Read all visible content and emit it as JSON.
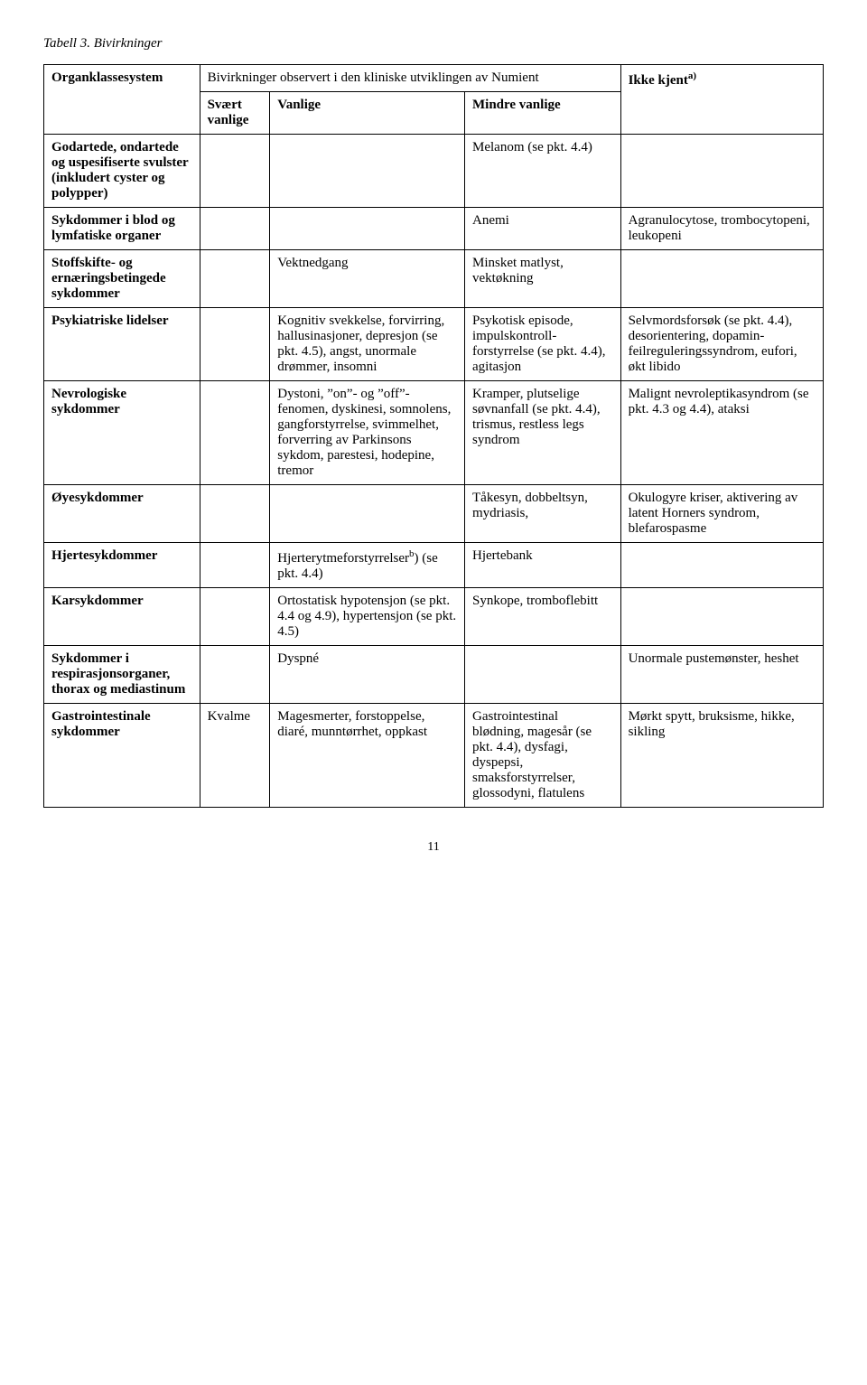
{
  "caption": "Tabell 3. Bivirkninger",
  "header": {
    "spanner": "Bivirkninger observert i den kliniske utviklingen av Numient",
    "organ": "Organklassesystem",
    "svart": "Svært vanlige",
    "vanlige": "Vanlige",
    "mindre": "Mindre vanlige",
    "ikke_pre": "Ikke kjent",
    "ikke_sup": "a)"
  },
  "rows": [
    {
      "organ": "Godartede, ondartede og uspesifiserte svulster (inkludert cyster og polypper)",
      "svart": "",
      "vanlige": "",
      "mindre": "Melanom (se pkt. 4.4)",
      "ikke": ""
    },
    {
      "organ": "Sykdommer i blod og lymfatiske organer",
      "svart": "",
      "vanlige": "",
      "mindre": "Anemi",
      "ikke": "Agranulocytose, trombocytopeni, leukopeni"
    },
    {
      "organ": "Stoffskifte- og ernæringsbetingede sykdommer",
      "svart": "",
      "vanlige": "Vektnedgang",
      "mindre": "Minsket matlyst, vektøkning",
      "ikke": ""
    },
    {
      "organ": "Psykiatriske lidelser",
      "svart": "",
      "vanlige": "Kognitiv svekkelse, forvirring, hallusinasjoner, depresjon (se pkt. 4.5), angst, unormale drømmer, insomni",
      "mindre": "Psykotisk episode, impulskontroll-forstyrrelse (se pkt. 4.4), agitasjon",
      "ikke": "Selvmordsforsøk (se pkt. 4.4), desorientering, dopamin-feilreguleringssyndrom, eufori, økt libido"
    },
    {
      "organ": "Nevrologiske sykdommer",
      "svart": "",
      "vanlige": "Dystoni, ”on”- og ”off”-fenomen, dyskinesi, somnolens, gangforstyrrelse, svimmelhet, forverring av Parkinsons sykdom, parestesi, hodepine, tremor",
      "mindre": "Kramper, plutselige søvnanfall (se pkt. 4.4), trismus, restless legs syndrom",
      "ikke": "Malignt nevroleptikasyndrom (se pkt. 4.3 og 4.4), ataksi"
    },
    {
      "organ": "Øyesykdommer",
      "svart": "",
      "vanlige": "",
      "mindre": "Tåkesyn, dobbeltsyn, mydriasis,",
      "ikke": "Okulogyre kriser, aktivering av latent Horners syndrom, blefarospasme"
    },
    {
      "organ": "Hjertesykdommer",
      "svart": "",
      "vanlige_pre": "Hjerterytmeforstyrrelser",
      "vanlige_sup": "b",
      "vanlige_post": ") (se pkt. 4.4)",
      "mindre": "Hjertebank",
      "ikke": ""
    },
    {
      "organ": "Karsykdommer",
      "svart": "",
      "vanlige": "Ortostatisk hypotensjon (se pkt. 4.4 og 4.9), hypertensjon (se pkt. 4.5)",
      "mindre": "Synkope, tromboflebitt",
      "ikke": ""
    },
    {
      "organ": "Sykdommer i respirasjonsorganer, thorax og mediastinum",
      "svart": "",
      "vanlige": "Dyspné",
      "mindre": "",
      "ikke": "Unormale pustemønster, heshet"
    },
    {
      "organ": "Gastrointestinale sykdommer",
      "svart": "Kvalme",
      "vanlige": "Magesmerter, forstoppelse, diaré, munntørrhet, oppkast",
      "mindre": "Gastrointestinal blødning, magesår (se pkt. 4.4), dysfagi, dyspepsi, smaksforstyrrelser, glossodyni, flatulens",
      "ikke": "Mørkt spytt, bruksisme, hikke, sikling"
    }
  ],
  "page_number": "11"
}
